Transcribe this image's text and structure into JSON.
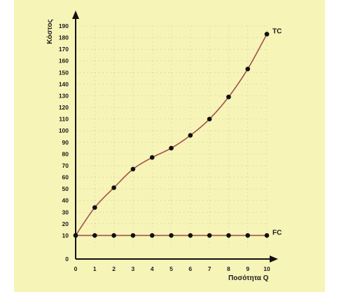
{
  "chart_data": {
    "type": "line",
    "title": "",
    "xlabel": "Ποσότητα Q",
    "ylabel": "Κόστος",
    "xlim": [
      0,
      10
    ],
    "ylim": [
      0,
      190
    ],
    "x_ticks": [
      0,
      1,
      2,
      3,
      4,
      5,
      6,
      7,
      8,
      9,
      10
    ],
    "y_ticks": [
      0,
      10,
      20,
      30,
      40,
      50,
      60,
      70,
      80,
      90,
      100,
      110,
      120,
      130,
      140,
      150,
      160,
      170,
      180,
      190
    ],
    "grid": true,
    "x": [
      0,
      1,
      2,
      3,
      4,
      5,
      6,
      7,
      8,
      9,
      10
    ],
    "series": [
      {
        "name": "TC",
        "values": [
          10,
          34,
          51,
          67,
          77,
          85,
          96,
          110,
          129,
          153,
          183
        ],
        "color": "#a0524a",
        "marker_color": "#111111"
      },
      {
        "name": "FC",
        "values": [
          10,
          10,
          10,
          10,
          10,
          10,
          10,
          10,
          10,
          10,
          10
        ],
        "color": "#a0524a",
        "marker_color": "#111111"
      }
    ]
  },
  "colors": {
    "panel_background": "#f7f4b7",
    "axis": "#111111",
    "grid": "#c6c3a0",
    "text": "#1b1b1b"
  }
}
